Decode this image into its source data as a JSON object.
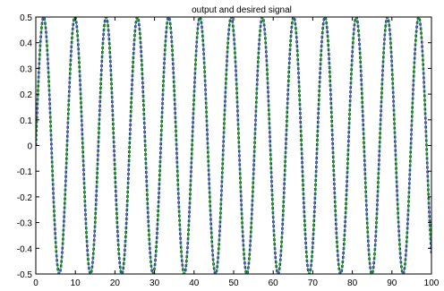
{
  "chart_data": {
    "type": "line",
    "title": "output and desired signal",
    "xlabel": "",
    "ylabel": "",
    "xlim": [
      0,
      100
    ],
    "ylim": [
      -0.5,
      0.5
    ],
    "x_ticks": [
      "0",
      "10",
      "20",
      "30",
      "40",
      "50",
      "60",
      "70",
      "80",
      "90",
      "100"
    ],
    "y_ticks": [
      "-0.5",
      "-0.4",
      "-0.3",
      "-0.2",
      "-0.1",
      "0",
      "0.1",
      "0.2",
      "0.3",
      "0.4",
      "0.5"
    ],
    "grid": false,
    "legend": "none",
    "series": [
      {
        "function": "0.5*sin(2*pi*x/7.9)",
        "amplitude": 0.5,
        "period": 7.9,
        "x_range": [
          0,
          100
        ],
        "color": "#1f2f8f",
        "style": "dotted-thick"
      },
      {
        "function": "0.5*sin(2*pi*x/7.9)",
        "amplitude": 0.5,
        "period": 7.9,
        "x_range": [
          0,
          100
        ],
        "color": "#2e9a3c",
        "style": "solid"
      }
    ]
  }
}
